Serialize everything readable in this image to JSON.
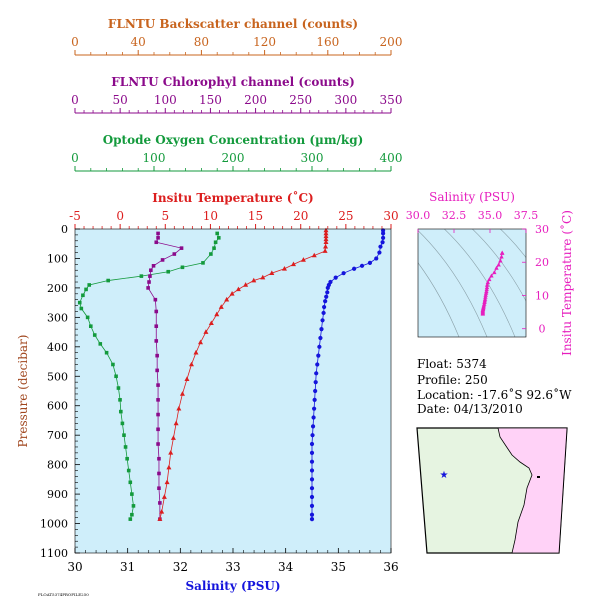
{
  "colors": {
    "backscatter": "#c8641e",
    "chlorophyll": "#8b0a8b",
    "oxygen": "#139a3c",
    "temperature": "#dc1e1e",
    "salinity": "#1414dc",
    "pressure_axis": "#a0461e",
    "ts_panel": "#e61ebe",
    "plot_bg": "#cfeefa",
    "ts_bg": "#cfeefa",
    "map_ocean": "#e6f4e1",
    "map_land": "#ffd2f7"
  },
  "info": {
    "float": "Float:  5374",
    "profile": "Profile:  250",
    "location": "Location:  -17.6˚S  92.6˚W",
    "date": "Date:  04/13/2010"
  },
  "footer_text": "FLOAT5374PROFILE250",
  "chart_data": [
    {
      "type": "line",
      "title": "",
      "ylabel": "Pressure (decibar)",
      "ylim": [
        1100,
        0
      ],
      "yticks": [
        0,
        100,
        200,
        300,
        400,
        500,
        600,
        700,
        800,
        900,
        1000,
        1100
      ],
      "grid": false,
      "legend": "none",
      "axes": {
        "backscatter": {
          "label": "FLNTU Backscatter channel (counts)",
          "range": [
            0,
            200
          ],
          "ticks": [
            0,
            40,
            80,
            120,
            160,
            200
          ]
        },
        "chlorophyll": {
          "label": "FLNTU Chlorophyl channel (counts)",
          "range": [
            0,
            350
          ],
          "ticks": [
            0,
            50,
            100,
            150,
            200,
            250,
            300,
            350
          ]
        },
        "oxygen": {
          "label": "Optode Oxygen Concentration (µm/kg)",
          "range": [
            0,
            400
          ],
          "ticks": [
            0,
            100,
            200,
            300,
            400
          ]
        },
        "temperature": {
          "label": "Insitu Temperature (˚C)",
          "range": [
            -5,
            30
          ],
          "ticks": [
            -5,
            0,
            5,
            10,
            15,
            20,
            25,
            30
          ]
        },
        "salinity": {
          "label": "Salinity (PSU)",
          "range": [
            30,
            36
          ],
          "ticks": [
            30,
            31,
            32,
            33,
            34,
            35,
            36
          ]
        }
      },
      "series": [
        {
          "name": "salinity",
          "axis": "salinity",
          "marker": "circle",
          "points": [
            [
              35.85,
              5
            ],
            [
              35.85,
              15
            ],
            [
              35.85,
              30
            ],
            [
              35.84,
              45
            ],
            [
              35.8,
              60
            ],
            [
              35.78,
              80
            ],
            [
              35.72,
              100
            ],
            [
              35.6,
              115
            ],
            [
              35.45,
              125
            ],
            [
              35.3,
              135
            ],
            [
              35.1,
              150
            ],
            [
              34.95,
              165
            ],
            [
              34.85,
              180
            ],
            [
              34.82,
              190
            ],
            [
              34.8,
              200
            ],
            [
              34.79,
              215
            ],
            [
              34.77,
              230
            ],
            [
              34.75,
              245
            ],
            [
              34.73,
              265
            ],
            [
              34.72,
              285
            ],
            [
              34.7,
              310
            ],
            [
              34.68,
              340
            ],
            [
              34.66,
              370
            ],
            [
              34.64,
              400
            ],
            [
              34.62,
              430
            ],
            [
              34.6,
              460
            ],
            [
              34.58,
              490
            ],
            [
              34.57,
              520
            ],
            [
              34.56,
              550
            ],
            [
              34.55,
              580
            ],
            [
              34.54,
              610
            ],
            [
              34.53,
              640
            ],
            [
              34.52,
              670
            ],
            [
              34.51,
              700
            ],
            [
              34.5,
              730
            ],
            [
              34.5,
              760
            ],
            [
              34.5,
              790
            ],
            [
              34.5,
              820
            ],
            [
              34.5,
              850
            ],
            [
              34.5,
              880
            ],
            [
              34.5,
              910
            ],
            [
              34.5,
              940
            ],
            [
              34.5,
              970
            ],
            [
              34.5,
              985
            ]
          ]
        },
        {
          "name": "temperature",
          "axis": "temperature",
          "marker": "triangle",
          "points": [
            [
              22.8,
              5
            ],
            [
              22.8,
              15
            ],
            [
              22.8,
              25
            ],
            [
              22.8,
              35
            ],
            [
              22.8,
              45
            ],
            [
              22.75,
              60
            ],
            [
              22.7,
              75
            ],
            [
              21.5,
              90
            ],
            [
              20.3,
              105
            ],
            [
              19.2,
              120
            ],
            [
              18.2,
              135
            ],
            [
              16.8,
              150
            ],
            [
              15.8,
              165
            ],
            [
              14.8,
              175
            ],
            [
              13.9,
              190
            ],
            [
              13.1,
              205
            ],
            [
              12.4,
              220
            ],
            [
              11.8,
              240
            ],
            [
              11.2,
              265
            ],
            [
              10.7,
              290
            ],
            [
              10.1,
              320
            ],
            [
              9.5,
              350
            ],
            [
              8.9,
              385
            ],
            [
              8.4,
              420
            ],
            [
              7.9,
              460
            ],
            [
              7.4,
              510
            ],
            [
              6.9,
              560
            ],
            [
              6.5,
              610
            ],
            [
              6.2,
              660
            ],
            [
              5.9,
              710
            ],
            [
              5.6,
              760
            ],
            [
              5.4,
              810
            ],
            [
              5.2,
              860
            ],
            [
              4.9,
              910
            ],
            [
              4.6,
              960
            ],
            [
              4.4,
              985
            ]
          ]
        },
        {
          "name": "chlorophyll",
          "axis": "chlorophyll",
          "marker": "square",
          "points": [
            [
              92,
              15
            ],
            [
              92,
              30
            ],
            [
              90,
              45
            ],
            [
              118,
              65
            ],
            [
              110,
              85
            ],
            [
              97,
              105
            ],
            [
              87,
              125
            ],
            [
              84,
              140
            ],
            [
              83,
              160
            ],
            [
              82,
              180
            ],
            [
              81,
              200
            ],
            [
              89,
              240
            ],
            [
              90,
              280
            ],
            [
              90,
              330
            ],
            [
              90,
              380
            ],
            [
              91,
              430
            ],
            [
              91,
              480
            ],
            [
              92,
              530
            ],
            [
              92,
              580
            ],
            [
              92,
              630
            ],
            [
              92,
              680
            ],
            [
              92,
              730
            ],
            [
              93,
              780
            ],
            [
              93,
              830
            ],
            [
              93,
              880
            ],
            [
              94,
              930
            ],
            [
              94,
              985
            ]
          ]
        },
        {
          "name": "oxygen",
          "axis": "oxygen",
          "marker": "square",
          "points": [
            [
              180,
              15
            ],
            [
              182,
              30
            ],
            [
              178,
              45
            ],
            [
              176,
              65
            ],
            [
              172,
              85
            ],
            [
              162,
              115
            ],
            [
              136,
              130
            ],
            [
              118,
              145
            ],
            [
              84,
              160
            ],
            [
              42,
              175
            ],
            [
              18,
              190
            ],
            [
              14,
              205
            ],
            [
              10,
              225
            ],
            [
              6,
              250
            ],
            [
              8,
              270
            ],
            [
              16,
              300
            ],
            [
              20,
              330
            ],
            [
              25,
              360
            ],
            [
              32,
              390
            ],
            [
              40,
              420
            ],
            [
              48,
              460
            ],
            [
              52,
              500
            ],
            [
              55,
              540
            ],
            [
              57,
              580
            ],
            [
              58,
              620
            ],
            [
              60,
              660
            ],
            [
              62,
              700
            ],
            [
              64,
              740
            ],
            [
              66,
              780
            ],
            [
              68,
              820
            ],
            [
              70,
              860
            ],
            [
              72,
              900
            ],
            [
              74,
              940
            ],
            [
              72,
              970
            ],
            [
              70,
              985
            ]
          ]
        }
      ]
    },
    {
      "type": "scatter",
      "title": "",
      "xlabel": "Salinity (PSU)",
      "ylabel": "Insitu Temperature (˚C)",
      "xlim": [
        30,
        37.5
      ],
      "ylim": [
        -2.5,
        30
      ],
      "xticks": [
        "30.0",
        "32.5",
        "35.0",
        "37.5"
      ],
      "yticks": [
        0,
        10,
        20,
        30
      ],
      "points": [
        [
          35.85,
          22.8
        ],
        [
          35.84,
          22.7
        ],
        [
          35.8,
          21.6
        ],
        [
          35.72,
          20.4
        ],
        [
          35.6,
          19.2
        ],
        [
          35.45,
          18.2
        ],
        [
          35.3,
          16.9
        ],
        [
          35.1,
          15.9
        ],
        [
          34.95,
          14.8
        ],
        [
          34.85,
          13.9
        ],
        [
          34.8,
          13.1
        ],
        [
          34.79,
          12.4
        ],
        [
          34.77,
          11.8
        ],
        [
          34.75,
          11.2
        ],
        [
          34.73,
          10.7
        ],
        [
          34.7,
          10.1
        ],
        [
          34.68,
          9.5
        ],
        [
          34.66,
          8.9
        ],
        [
          34.64,
          8.4
        ],
        [
          34.62,
          7.9
        ],
        [
          34.6,
          7.4
        ],
        [
          34.57,
          6.9
        ],
        [
          34.55,
          6.5
        ],
        [
          34.53,
          6.1
        ],
        [
          34.52,
          5.8
        ],
        [
          34.5,
          5.5
        ],
        [
          34.5,
          5.2
        ],
        [
          34.5,
          4.9
        ],
        [
          34.5,
          4.6
        ],
        [
          34.5,
          4.4
        ]
      ],
      "density_contours": 5
    },
    {
      "type": "map",
      "marker": {
        "label": "float-position",
        "lat": -17.6,
        "lon": -92.6
      }
    }
  ]
}
